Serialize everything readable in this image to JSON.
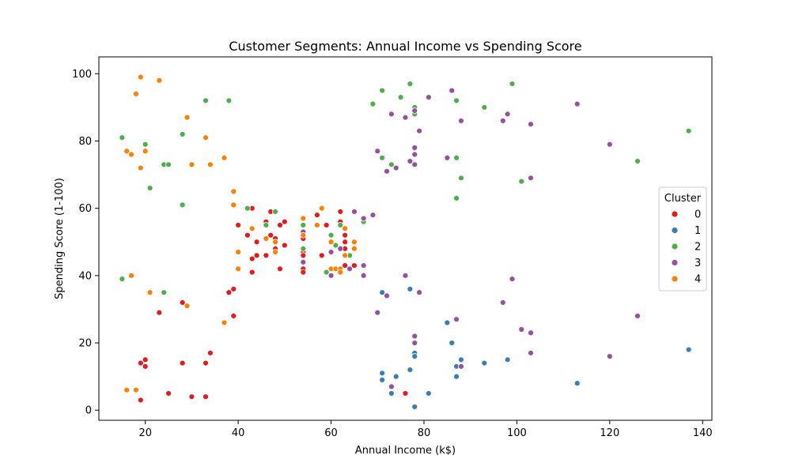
{
  "chart_data": {
    "type": "scatter",
    "title": "Customer Segments: Annual Income vs Spending Score",
    "xlabel": "Annual Income (k$)",
    "ylabel": "Spending Score (1-100)",
    "xlim": [
      10,
      142
    ],
    "ylim": [
      -3,
      105
    ],
    "xticks": [
      20,
      40,
      60,
      80,
      100,
      120,
      140
    ],
    "yticks": [
      0,
      20,
      40,
      60,
      80,
      100
    ],
    "grid": false,
    "legend": {
      "title": "Cluster",
      "position": "center-right"
    },
    "series": [
      {
        "name": "0",
        "color": "#e41a1c",
        "points": [
          [
            19,
            3
          ],
          [
            25,
            5
          ],
          [
            30,
            4
          ],
          [
            33,
            4
          ],
          [
            76,
            5
          ],
          [
            19,
            14
          ],
          [
            20,
            15
          ],
          [
            20,
            13
          ],
          [
            28,
            14
          ],
          [
            33,
            14
          ],
          [
            34,
            17
          ],
          [
            23,
            29
          ],
          [
            28,
            32
          ],
          [
            38,
            35
          ],
          [
            39,
            36
          ],
          [
            39,
            28
          ],
          [
            40,
            55
          ],
          [
            42,
            52
          ],
          [
            43,
            60
          ],
          [
            43,
            45
          ],
          [
            43,
            41
          ],
          [
            44,
            50
          ],
          [
            44,
            46
          ],
          [
            46,
            56
          ],
          [
            46,
            46
          ],
          [
            47,
            52
          ],
          [
            47,
            59
          ],
          [
            48,
            51
          ],
          [
            48,
            48
          ],
          [
            49,
            55
          ],
          [
            49,
            42
          ],
          [
            50,
            56
          ],
          [
            50,
            49
          ],
          [
            54,
            51
          ],
          [
            54,
            47
          ],
          [
            54,
            46
          ],
          [
            54,
            42
          ],
          [
            54,
            41
          ],
          [
            57,
            58
          ],
          [
            58,
            46
          ],
          [
            59,
            55
          ],
          [
            61,
            42
          ],
          [
            62,
            59
          ],
          [
            62,
            56
          ],
          [
            62,
            41
          ],
          [
            63,
            52
          ],
          [
            63,
            50
          ],
          [
            63,
            48
          ],
          [
            63,
            46
          ],
          [
            63,
            43
          ],
          [
            64,
            46
          ],
          [
            65,
            43
          ]
        ]
      },
      {
        "name": "1",
        "color": "#377eb8",
        "points": [
          [
            71,
            35
          ],
          [
            71,
            11
          ],
          [
            71,
            9
          ],
          [
            73,
            5
          ],
          [
            74,
            10
          ],
          [
            77,
            12
          ],
          [
            77,
            36
          ],
          [
            78,
            17
          ],
          [
            78,
            16
          ],
          [
            78,
            1
          ],
          [
            81,
            5
          ],
          [
            85,
            26
          ],
          [
            86,
            20
          ],
          [
            87,
            13
          ],
          [
            87,
            10
          ],
          [
            88,
            15
          ],
          [
            88,
            13
          ],
          [
            93,
            14
          ],
          [
            98,
            15
          ],
          [
            113,
            8
          ],
          [
            137,
            18
          ]
        ]
      },
      {
        "name": "2",
        "color": "#4daf4a",
        "points": [
          [
            15,
            81
          ],
          [
            15,
            39
          ],
          [
            20,
            79
          ],
          [
            21,
            66
          ],
          [
            24,
            73
          ],
          [
            24,
            35
          ],
          [
            25,
            73
          ],
          [
            28,
            82
          ],
          [
            28,
            61
          ],
          [
            33,
            92
          ],
          [
            38,
            92
          ],
          [
            42,
            60
          ],
          [
            46,
            55
          ],
          [
            48,
            59
          ],
          [
            54,
            55
          ],
          [
            54,
            48
          ],
          [
            59,
            41
          ],
          [
            60,
            52
          ],
          [
            61,
            49
          ],
          [
            62,
            55
          ],
          [
            64,
            46
          ],
          [
            67,
            56
          ],
          [
            69,
            91
          ],
          [
            71,
            95
          ],
          [
            71,
            75
          ],
          [
            73,
            73
          ],
          [
            75,
            93
          ],
          [
            77,
            97
          ],
          [
            78,
            90
          ],
          [
            78,
            88
          ],
          [
            87,
            92
          ],
          [
            87,
            75
          ],
          [
            87,
            63
          ],
          [
            88,
            69
          ],
          [
            93,
            90
          ],
          [
            99,
            97
          ],
          [
            101,
            68
          ],
          [
            126,
            74
          ],
          [
            137,
            83
          ]
        ]
      },
      {
        "name": "3",
        "color": "#984ea3",
        "points": [
          [
            54,
            53
          ],
          [
            54,
            44
          ],
          [
            60,
            40
          ],
          [
            60,
            47
          ],
          [
            62,
            48
          ],
          [
            64,
            42
          ],
          [
            65,
            59
          ],
          [
            67,
            57
          ],
          [
            67,
            43
          ],
          [
            67,
            40
          ],
          [
            69,
            58
          ],
          [
            70,
            77
          ],
          [
            70,
            29
          ],
          [
            72,
            71
          ],
          [
            72,
            34
          ],
          [
            73,
            88
          ],
          [
            73,
            7
          ],
          [
            74,
            72
          ],
          [
            76,
            87
          ],
          [
            76,
            40
          ],
          [
            77,
            74
          ],
          [
            78,
            89
          ],
          [
            78,
            78
          ],
          [
            78,
            76
          ],
          [
            78,
            73
          ],
          [
            78,
            22
          ],
          [
            78,
            20
          ],
          [
            79,
            83
          ],
          [
            79,
            35
          ],
          [
            81,
            93
          ],
          [
            85,
            75
          ],
          [
            86,
            95
          ],
          [
            87,
            27
          ],
          [
            88,
            86
          ],
          [
            88,
            13
          ],
          [
            97,
            86
          ],
          [
            97,
            32
          ],
          [
            98,
            88
          ],
          [
            99,
            39
          ],
          [
            101,
            24
          ],
          [
            103,
            85
          ],
          [
            103,
            69
          ],
          [
            103,
            23
          ],
          [
            103,
            17
          ],
          [
            113,
            91
          ],
          [
            120,
            79
          ],
          [
            120,
            16
          ],
          [
            126,
            28
          ]
        ]
      },
      {
        "name": "4",
        "color": "#ff7f00",
        "points": [
          [
            16,
            77
          ],
          [
            16,
            6
          ],
          [
            17,
            76
          ],
          [
            17,
            40
          ],
          [
            18,
            94
          ],
          [
            18,
            6
          ],
          [
            19,
            99
          ],
          [
            19,
            72
          ],
          [
            20,
            77
          ],
          [
            21,
            35
          ],
          [
            23,
            98
          ],
          [
            29,
            87
          ],
          [
            29,
            31
          ],
          [
            30,
            73
          ],
          [
            33,
            81
          ],
          [
            34,
            73
          ],
          [
            37,
            75
          ],
          [
            37,
            26
          ],
          [
            39,
            65
          ],
          [
            39,
            61
          ],
          [
            40,
            47
          ],
          [
            40,
            42
          ],
          [
            43,
            54
          ],
          [
            46,
            51
          ],
          [
            48,
            50
          ],
          [
            48,
            47
          ],
          [
            54,
            57
          ],
          [
            54,
            52
          ],
          [
            57,
            55
          ],
          [
            58,
            60
          ],
          [
            60,
            50
          ],
          [
            60,
            42
          ],
          [
            61,
            42
          ],
          [
            62,
            42
          ],
          [
            62,
            41
          ],
          [
            63,
            54
          ],
          [
            63,
            46
          ],
          [
            65,
            50
          ],
          [
            65,
            48
          ]
        ]
      }
    ]
  }
}
